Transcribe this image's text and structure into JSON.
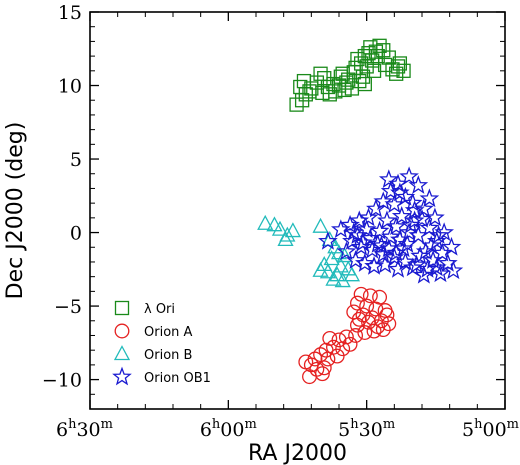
{
  "chart_data": {
    "type": "scatter",
    "xlabel": "RA J2000",
    "ylabel": "Dec J2000 (deg)",
    "xlim": [
      97.5,
      75
    ],
    "ylim": [
      -12,
      15
    ],
    "xticks": [
      {
        "value": 97.5,
        "h": "6",
        "m": "30"
      },
      {
        "value": 90,
        "h": "6",
        "m": "00"
      },
      {
        "value": 82.5,
        "h": "5",
        "m": "30"
      },
      {
        "value": 75,
        "h": "5",
        "m": "00"
      }
    ],
    "yticks": [
      -10,
      -5,
      0,
      5,
      10,
      15
    ],
    "legend_position": "bottom-left",
    "series": [
      {
        "name": "λ Ori",
        "marker": "square",
        "color": "#1a8a1a",
        "points": [
          [
            86.3,
            8.7
          ],
          [
            86.0,
            9.0
          ],
          [
            85.8,
            9.4
          ],
          [
            85.5,
            9.8
          ],
          [
            86.1,
            9.9
          ],
          [
            85.2,
            10.2
          ],
          [
            85.6,
            9.6
          ],
          [
            84.9,
            9.5
          ],
          [
            84.6,
            9.9
          ],
          [
            84.3,
            10.1
          ],
          [
            84.8,
            10.5
          ],
          [
            84.0,
            10.0
          ],
          [
            83.7,
            9.7
          ],
          [
            83.5,
            10.4
          ],
          [
            83.9,
            10.6
          ],
          [
            83.2,
            10.9
          ],
          [
            83.6,
            10.2
          ],
          [
            82.9,
            10.3
          ],
          [
            82.7,
            10.6
          ],
          [
            83.3,
            9.8
          ],
          [
            84.5,
            9.4
          ],
          [
            83.1,
            11.2
          ],
          [
            82.8,
            11.5
          ],
          [
            82.5,
            11.3
          ],
          [
            82.2,
            11.7
          ],
          [
            82.6,
            12.0
          ],
          [
            82.0,
            12.3
          ],
          [
            82.3,
            12.6
          ],
          [
            81.9,
            12.0
          ],
          [
            81.6,
            12.4
          ],
          [
            81.3,
            11.9
          ],
          [
            81.5,
            11.4
          ],
          [
            81.1,
            11.1
          ],
          [
            80.7,
            11.5
          ],
          [
            80.5,
            11.0
          ],
          [
            80.9,
            10.8
          ],
          [
            82.1,
            11.0
          ],
          [
            81.8,
            12.7
          ],
          [
            82.4,
            12.2
          ],
          [
            83.0,
            11.8
          ],
          [
            85.0,
            10.8
          ],
          [
            84.2,
            9.6
          ],
          [
            83.8,
            10.8
          ],
          [
            82.6,
            10.1
          ],
          [
            80.8,
            11.3
          ],
          [
            85.9,
            10.3
          ]
        ]
      },
      {
        "name": "Orion A",
        "marker": "circle",
        "color": "#e52222",
        "points": [
          [
            82.8,
            -4.2
          ],
          [
            82.3,
            -4.3
          ],
          [
            81.8,
            -4.4
          ],
          [
            83.0,
            -4.8
          ],
          [
            82.5,
            -5.0
          ],
          [
            82.0,
            -5.2
          ],
          [
            83.2,
            -5.4
          ],
          [
            82.7,
            -5.6
          ],
          [
            82.2,
            -5.8
          ],
          [
            81.7,
            -6.0
          ],
          [
            81.5,
            -5.3
          ],
          [
            81.3,
            -6.2
          ],
          [
            81.6,
            -6.6
          ],
          [
            82.1,
            -6.7
          ],
          [
            82.6,
            -6.8
          ],
          [
            83.1,
            -7.0
          ],
          [
            83.6,
            -7.1
          ],
          [
            84.0,
            -7.3
          ],
          [
            83.4,
            -7.6
          ],
          [
            84.3,
            -7.8
          ],
          [
            84.7,
            -8.0
          ],
          [
            85.0,
            -8.3
          ],
          [
            85.3,
            -8.6
          ],
          [
            85.5,
            -9.0
          ],
          [
            85.2,
            -9.3
          ],
          [
            84.9,
            -9.6
          ],
          [
            85.6,
            -9.8
          ],
          [
            84.6,
            -8.6
          ],
          [
            84.1,
            -8.4
          ],
          [
            83.8,
            -7.9
          ],
          [
            83.0,
            -6.3
          ],
          [
            82.4,
            -6.1
          ],
          [
            81.9,
            -6.4
          ],
          [
            81.4,
            -5.6
          ],
          [
            82.9,
            -5.9
          ],
          [
            84.5,
            -7.2
          ],
          [
            85.8,
            -8.8
          ],
          [
            84.8,
            -9.2
          ]
        ]
      },
      {
        "name": "Orion B",
        "marker": "triangle",
        "color": "#22bbbb",
        "points": [
          [
            88.0,
            0.6
          ],
          [
            87.5,
            0.5
          ],
          [
            87.2,
            0.2
          ],
          [
            86.8,
            -0.2
          ],
          [
            86.5,
            0.1
          ],
          [
            86.9,
            -0.5
          ],
          [
            85.0,
            0.4
          ],
          [
            84.5,
            -0.5
          ],
          [
            84.2,
            -1.0
          ],
          [
            84.0,
            -1.4
          ],
          [
            83.7,
            -1.6
          ],
          [
            84.4,
            -1.8
          ],
          [
            84.8,
            -2.2
          ],
          [
            83.9,
            -2.3
          ],
          [
            84.6,
            -2.7
          ],
          [
            84.1,
            -2.9
          ],
          [
            83.5,
            -2.5
          ],
          [
            83.3,
            -2.9
          ],
          [
            84.3,
            -3.2
          ],
          [
            83.8,
            -3.3
          ],
          [
            85.0,
            -2.6
          ]
        ]
      },
      {
        "name": "Orion OB1",
        "marker": "star",
        "color": "#1a1ad0",
        "points": [
          [
            84.6,
            -0.6
          ],
          [
            83.9,
            0.2
          ],
          [
            83.4,
            0.5
          ],
          [
            82.9,
            0.8
          ],
          [
            82.4,
            1.0
          ],
          [
            82.0,
            1.6
          ],
          [
            81.6,
            2.1
          ],
          [
            81.2,
            2.8
          ],
          [
            80.8,
            3.3
          ],
          [
            80.4,
            2.4
          ],
          [
            79.9,
            1.5
          ],
          [
            79.5,
            0.9
          ],
          [
            79.1,
            0.3
          ],
          [
            78.7,
            -0.6
          ],
          [
            78.4,
            -1.4
          ],
          [
            78.1,
            -2.1
          ],
          [
            77.8,
            -2.6
          ],
          [
            78.5,
            -2.8
          ],
          [
            79.2,
            -2.5
          ],
          [
            79.8,
            -2.2
          ],
          [
            80.4,
            -2.0
          ],
          [
            81.0,
            -1.7
          ],
          [
            81.6,
            -1.5
          ],
          [
            82.2,
            -1.2
          ],
          [
            82.8,
            -1.0
          ],
          [
            83.3,
            -0.6
          ],
          [
            83.6,
            -1.3
          ],
          [
            83.1,
            -1.9
          ],
          [
            82.6,
            -2.1
          ],
          [
            82.1,
            -2.3
          ],
          [
            81.5,
            -2.2
          ],
          [
            80.9,
            -1.4
          ],
          [
            80.3,
            -0.8
          ],
          [
            79.7,
            -0.2
          ],
          [
            80.1,
            0.5
          ],
          [
            80.6,
            1.1
          ],
          [
            81.0,
            1.9
          ],
          [
            81.4,
            0.8
          ],
          [
            81.8,
            0.1
          ],
          [
            82.3,
            -0.4
          ],
          [
            81.2,
            -0.3
          ],
          [
            80.7,
            -0.5
          ],
          [
            79.3,
            -1.3
          ],
          [
            78.9,
            -1.9
          ],
          [
            79.6,
            -1.6
          ],
          [
            80.2,
            0.0
          ],
          [
            80.9,
            0.4
          ],
          [
            81.9,
            -0.8
          ],
          [
            82.5,
            0.2
          ],
          [
            83.0,
            -0.2
          ],
          [
            80.5,
            -1.1
          ],
          [
            79.0,
            -0.9
          ],
          [
            78.6,
            -0.2
          ],
          [
            79.4,
            1.6
          ],
          [
            80.0,
            2.0
          ],
          [
            80.7,
            2.7
          ],
          [
            81.3,
            3.6
          ],
          [
            80.2,
            3.8
          ],
          [
            79.7,
            3.2
          ],
          [
            79.1,
            2.3
          ],
          [
            78.8,
            1.0
          ],
          [
            78.3,
            0.0
          ],
          [
            77.9,
            -1.0
          ],
          [
            81.7,
            -0.9
          ],
          [
            82.7,
            -0.7
          ],
          [
            83.2,
            0.0
          ],
          [
            80.0,
            -2.4
          ],
          [
            80.8,
            -2.5
          ],
          [
            79.4,
            -2.9
          ],
          [
            81.3,
            -1.1
          ],
          [
            79.9,
            0.8
          ],
          [
            78.7,
            -2.4
          ]
        ]
      }
    ]
  }
}
